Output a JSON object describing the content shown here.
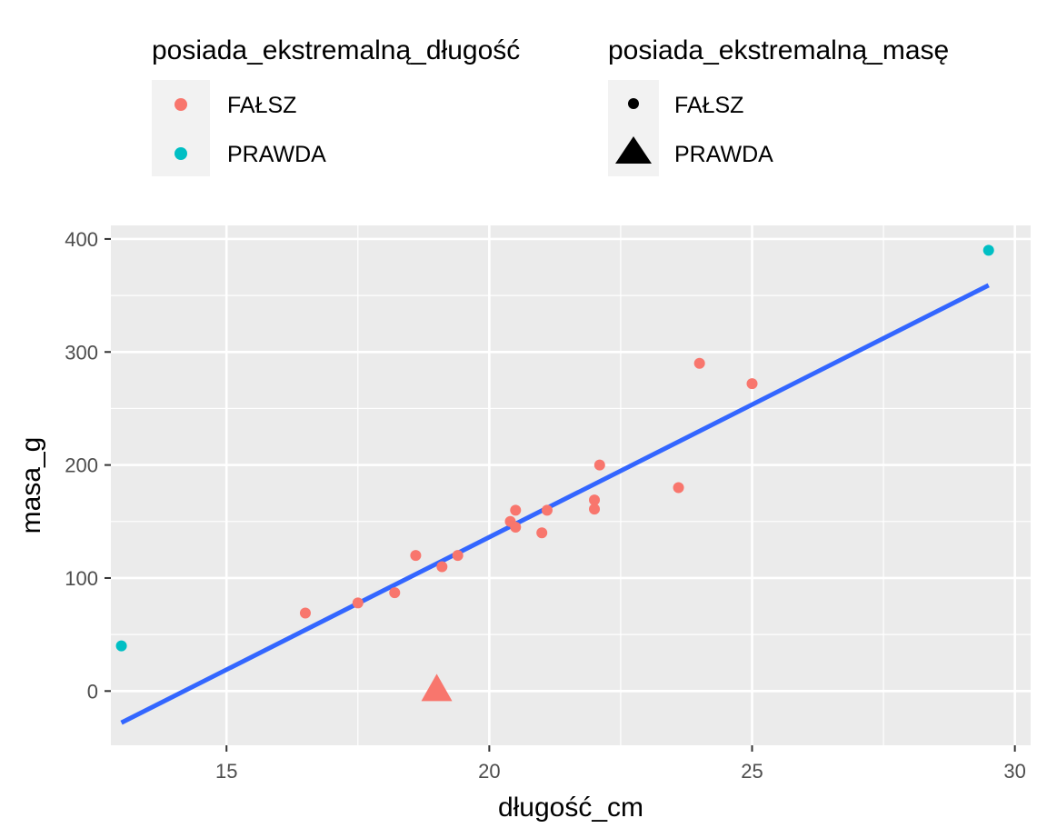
{
  "chart_data": {
    "type": "scatter",
    "xlabel": "długość_cm",
    "ylabel": "masa_g",
    "xlim": [
      12.8,
      30.3
    ],
    "ylim": [
      -48,
      412
    ],
    "x_ticks": [
      15,
      20,
      25,
      30
    ],
    "y_ticks": [
      0,
      100,
      200,
      300,
      400
    ],
    "grid": true,
    "legend_position": "top",
    "colors": {
      "FAŁSZ": "#F8766D",
      "PRAWDA": "#00BFC4",
      "trend_line": "#3366FF",
      "panel": "#EBEBEB",
      "grid": "#FFFFFF"
    },
    "legends": [
      {
        "title": "posiada_ekstremalną_długość",
        "kind": "color",
        "entries": [
          {
            "label": "FAŁSZ",
            "color": "#F8766D"
          },
          {
            "label": "PRAWDA",
            "color": "#00BFC4"
          }
        ]
      },
      {
        "title": "posiada_ekstremalną_masę",
        "kind": "shape",
        "entries": [
          {
            "label": "FAŁSZ",
            "shape": "circle"
          },
          {
            "label": "PRAWDA",
            "shape": "triangle"
          }
        ]
      }
    ],
    "points": [
      {
        "x": 13.0,
        "y": 40,
        "dlugosc": "PRAWDA",
        "masa": "FAŁSZ"
      },
      {
        "x": 16.5,
        "y": 69,
        "dlugosc": "FAŁSZ",
        "masa": "FAŁSZ"
      },
      {
        "x": 17.5,
        "y": 78,
        "dlugosc": "FAŁSZ",
        "masa": "FAŁSZ"
      },
      {
        "x": 18.2,
        "y": 87,
        "dlugosc": "FAŁSZ",
        "masa": "FAŁSZ"
      },
      {
        "x": 18.6,
        "y": 120,
        "dlugosc": "FAŁSZ",
        "masa": "FAŁSZ"
      },
      {
        "x": 19.1,
        "y": 110,
        "dlugosc": "FAŁSZ",
        "masa": "FAŁSZ"
      },
      {
        "x": 19.4,
        "y": 120,
        "dlugosc": "FAŁSZ",
        "masa": "FAŁSZ"
      },
      {
        "x": 19.0,
        "y": 0,
        "dlugosc": "FAŁSZ",
        "masa": "PRAWDA"
      },
      {
        "x": 20.4,
        "y": 150,
        "dlugosc": "FAŁSZ",
        "masa": "FAŁSZ"
      },
      {
        "x": 20.5,
        "y": 145,
        "dlugosc": "FAŁSZ",
        "masa": "FAŁSZ"
      },
      {
        "x": 20.5,
        "y": 160,
        "dlugosc": "FAŁSZ",
        "masa": "FAŁSZ"
      },
      {
        "x": 21.0,
        "y": 140,
        "dlugosc": "FAŁSZ",
        "masa": "FAŁSZ"
      },
      {
        "x": 21.1,
        "y": 160,
        "dlugosc": "FAŁSZ",
        "masa": "FAŁSZ"
      },
      {
        "x": 22.0,
        "y": 161,
        "dlugosc": "FAŁSZ",
        "masa": "FAŁSZ"
      },
      {
        "x": 22.0,
        "y": 169,
        "dlugosc": "FAŁSZ",
        "masa": "FAŁSZ"
      },
      {
        "x": 22.1,
        "y": 200,
        "dlugosc": "FAŁSZ",
        "masa": "FAŁSZ"
      },
      {
        "x": 23.6,
        "y": 180,
        "dlugosc": "FAŁSZ",
        "masa": "FAŁSZ"
      },
      {
        "x": 24.0,
        "y": 290,
        "dlugosc": "FAŁSZ",
        "masa": "FAŁSZ"
      },
      {
        "x": 25.0,
        "y": 272,
        "dlugosc": "FAŁSZ",
        "masa": "FAŁSZ"
      },
      {
        "x": 29.5,
        "y": 390,
        "dlugosc": "PRAWDA",
        "masa": "FAŁSZ"
      }
    ],
    "trend_line": {
      "x": [
        13.0,
        29.5
      ],
      "y": [
        -28,
        359
      ]
    }
  }
}
